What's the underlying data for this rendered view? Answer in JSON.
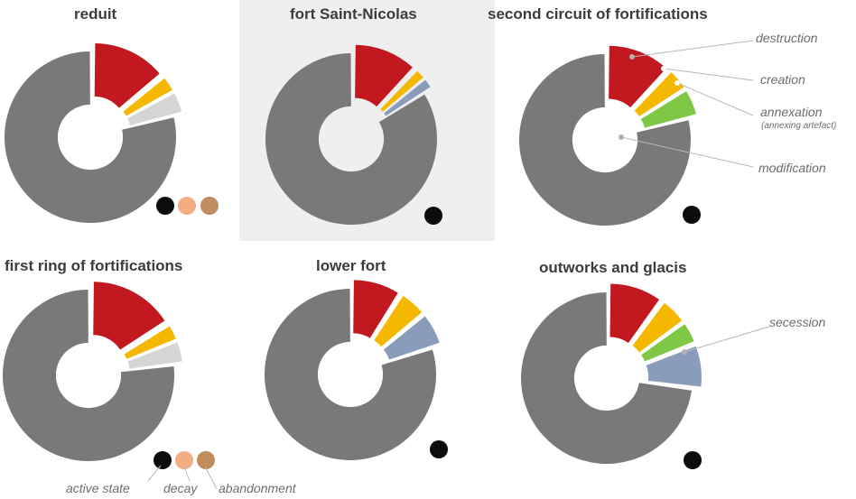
{
  "chart_data": [
    {
      "type": "pie",
      "title": "reduit",
      "categories": [
        "modification",
        "destruction",
        "creation",
        "annexation",
        "secession"
      ],
      "values": [
        79,
        14,
        3,
        0,
        4
      ],
      "exploded": [
        "destruction",
        "creation",
        "secession"
      ],
      "state_markers": [
        "active state",
        "decay",
        "abandonment"
      ]
    },
    {
      "type": "pie",
      "title": "fort Saint-Nicolas",
      "categories": [
        "modification",
        "destruction",
        "creation",
        "annexation",
        "secession"
      ],
      "values": [
        84,
        12,
        2,
        0,
        2
      ],
      "exploded": [
        "destruction",
        "creation",
        "secession"
      ],
      "state_markers": [
        "active state"
      ]
    },
    {
      "type": "pie",
      "title": "second circuit of fortifications",
      "categories": [
        "modification",
        "destruction",
        "creation",
        "annexation",
        "secession"
      ],
      "values": [
        79,
        12,
        4,
        5,
        0
      ],
      "exploded": [
        "destruction",
        "creation",
        "annexation"
      ],
      "state_markers": [
        "active state"
      ]
    },
    {
      "type": "pie",
      "title": "first ring of fortifications",
      "categories": [
        "modification",
        "destruction",
        "creation",
        "annexation",
        "secession"
      ],
      "values": [
        77,
        16,
        3,
        0,
        4
      ],
      "exploded": [
        "destruction",
        "creation",
        "secession"
      ],
      "state_markers": [
        "active state",
        "decay",
        "abandonment"
      ]
    },
    {
      "type": "pie",
      "title": "lower fort",
      "categories": [
        "modification",
        "destruction",
        "creation",
        "annexation",
        "secession"
      ],
      "values": [
        80,
        9,
        5,
        0,
        6
      ],
      "exploded": [
        "destruction",
        "creation",
        "secession"
      ],
      "state_markers": [
        "active state"
      ]
    },
    {
      "type": "pie",
      "title": "outworks and glacis",
      "categories": [
        "modification",
        "destruction",
        "creation",
        "annexation",
        "secession"
      ],
      "values": [
        73,
        10,
        5,
        4,
        8
      ],
      "exploded": [
        "destruction",
        "creation",
        "secession",
        "annexation"
      ],
      "state_markers": [
        "active state"
      ]
    }
  ],
  "annotations": {
    "destruction": "destruction",
    "creation": "creation",
    "annexation": "annexation",
    "annexation_sub": "(annexing artefact)",
    "modification": "modification",
    "secession": "secession",
    "active_state": "active state",
    "decay": "decay",
    "abandonment": "abandonment"
  },
  "colors": {
    "modification": "#797979",
    "destruction": "#c1191f",
    "creation": "#f4b800",
    "annexation": "#7ec845",
    "secession": "#8a9cbc",
    "secession_light": "#d5d5d5",
    "active_state": "#0c0c0c",
    "decay": "#f3ad82",
    "abandonment": "#c18c5e",
    "highlight_panel": "#efefef"
  }
}
